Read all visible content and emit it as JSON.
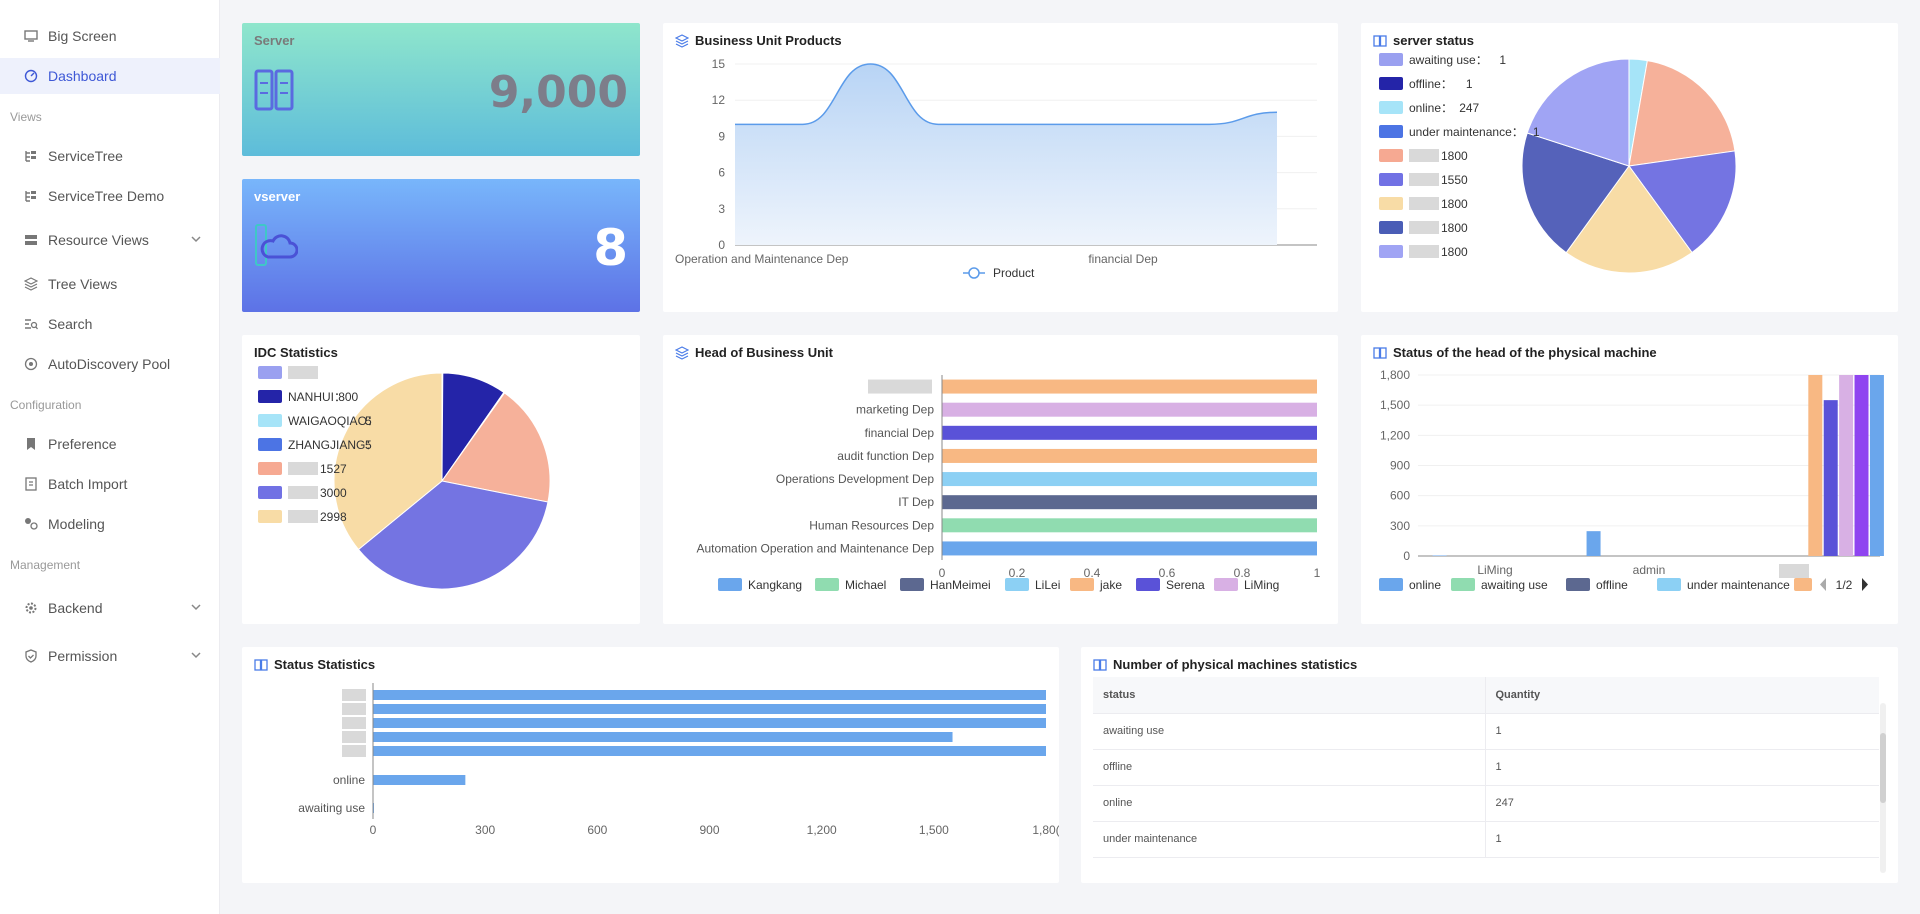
{
  "sidebar": {
    "items": [
      {
        "label": "Big Screen"
      },
      {
        "label": "Dashboard"
      },
      {
        "label": "ServiceTree"
      },
      {
        "label": "ServiceTree Demo"
      },
      {
        "label": "Resource Views"
      },
      {
        "label": "Tree Views"
      },
      {
        "label": "Search"
      },
      {
        "label": "AutoDiscovery Pool"
      },
      {
        "label": "Preference"
      },
      {
        "label": "Batch Import"
      },
      {
        "label": "Modeling"
      },
      {
        "label": "Backend"
      },
      {
        "label": "Permission"
      }
    ],
    "sections": [
      "Views",
      "Configuration",
      "Management"
    ]
  },
  "cards": {
    "server": {
      "label": "Server",
      "value": "9,000"
    },
    "vserver": {
      "label": "vserver",
      "value": "8"
    },
    "business_unit_products": {
      "title": "Business Unit Products"
    },
    "server_status": {
      "title": "server status"
    },
    "idc_statistics": {
      "title": "IDC Statistics"
    },
    "head_of_business_unit": {
      "title": "Head of Business Unit"
    },
    "physical_head_status": {
      "title": "Status of the head of the physical machine"
    },
    "status_statistics": {
      "title": "Status Statistics"
    },
    "physical_machines": {
      "title": "Number of physical machines statistics",
      "columns": [
        "status",
        "Quantity"
      ],
      "rows": [
        [
          "awaiting use",
          "1"
        ],
        [
          "offline",
          "1"
        ],
        [
          "online",
          "247"
        ],
        [
          "under maintenance",
          "1"
        ]
      ]
    }
  },
  "chart_data": [
    {
      "type": "area",
      "title": "Business Unit Products",
      "x": [
        "Operation and Maintenance Dep",
        "",
        "",
        "",
        "",
        "",
        "financial Dep",
        "",
        ""
      ],
      "xlabels_shown": [
        "Operation and Maintenance Dep",
        "financial Dep"
      ],
      "series": [
        {
          "name": "Product",
          "values": [
            10,
            10,
            15,
            10,
            10,
            10,
            10,
            10,
            11
          ]
        }
      ],
      "ylim": [
        0,
        15
      ],
      "yticks": [
        "0",
        "3",
        "6",
        "9",
        "12",
        "15"
      ],
      "color": "#5b9bea"
    },
    {
      "type": "pie",
      "title": "server status",
      "legend": [
        {
          "name": "awaiting use",
          "value": "1",
          "color": "#9aa0f0"
        },
        {
          "name": "offline",
          "value": "1",
          "color": "#2424a8"
        },
        {
          "name": "online",
          "value": "247",
          "color": "#a6e4f8"
        },
        {
          "name": "under maintenance",
          "value": "1",
          "color": "#4c74e4"
        },
        {
          "name": "",
          "value": "1800",
          "color": "#f6a992"
        },
        {
          "name": "",
          "value": "1550",
          "color": "#7171e4"
        },
        {
          "name": "",
          "value": "1800",
          "color": "#f8dca6"
        },
        {
          "name": "",
          "value": "1800",
          "color": "#4a5db6"
        },
        {
          "name": "",
          "value": "1800",
          "color": "#a0a4f4"
        }
      ],
      "slices": [
        {
          "value": 247,
          "color": "#a6e4f8"
        },
        {
          "value": 1800,
          "color": "#f6b19a"
        },
        {
          "value": 1550,
          "color": "#7474e2"
        },
        {
          "value": 1800,
          "color": "#f8dca6"
        },
        {
          "value": 1800,
          "color": "#5562ba"
        },
        {
          "value": 1800,
          "color": "#a0a4f4"
        }
      ]
    },
    {
      "type": "pie",
      "title": "IDC Statistics",
      "legend": [
        {
          "name": "",
          "value": "",
          "color": "#9aa0f0"
        },
        {
          "name": "NANHUI",
          "value": "800",
          "color": "#2424a8"
        },
        {
          "name": "WAIGAOQIAO",
          "value": "5",
          "color": "#a6e4f8"
        },
        {
          "name": "ZHANGJIANG",
          "value": "5",
          "color": "#4c74e4"
        },
        {
          "name": "",
          "value": "1527",
          "color": "#f6a992"
        },
        {
          "name": "",
          "value": "3000",
          "color": "#7171e4"
        },
        {
          "name": "",
          "value": "2998",
          "color": "#f8dca6"
        }
      ],
      "slices": [
        {
          "value": 10,
          "color": "#9aa0f0"
        },
        {
          "value": 800,
          "color": "#2424a8"
        },
        {
          "value": 5,
          "color": "#a6e4f8"
        },
        {
          "value": 5,
          "color": "#4c74e4"
        },
        {
          "value": 1527,
          "color": "#f6b19a"
        },
        {
          "value": 3000,
          "color": "#7474e2"
        },
        {
          "value": 2998,
          "color": "#f8dca6"
        }
      ]
    },
    {
      "type": "bar",
      "orientation": "horizontal",
      "title": "Head of Business Unit",
      "categories": [
        "",
        "marketing Dep",
        "financial Dep",
        "audit function Dep",
        "Operations Development Dep",
        "IT Dep",
        "Human Resources Dep",
        "Automation Operation and Maintenance Dep"
      ],
      "values": [
        1,
        1,
        1,
        1,
        1,
        1,
        1,
        1
      ],
      "bar_colors": [
        "#f8b883",
        "#d8b0e4",
        "#5a52d8",
        "#f8b883",
        "#8cd0f4",
        "#5c6890",
        "#90dcb0",
        "#6aa6ec"
      ],
      "xlim": [
        0,
        1
      ],
      "xticks": [
        "0",
        "0.2",
        "0.4",
        "0.6",
        "0.8",
        "1"
      ],
      "legend": [
        {
          "name": "Kangkang",
          "color": "#6aa6ec"
        },
        {
          "name": "Michael",
          "color": "#90dcb0"
        },
        {
          "name": "HanMeimei",
          "color": "#5c6890"
        },
        {
          "name": "LiLei",
          "color": "#8cd0f4"
        },
        {
          "name": "jake",
          "color": "#f8b883"
        },
        {
          "name": "Serena",
          "color": "#5a52d8"
        },
        {
          "name": "LiMing",
          "color": "#d8b0e4"
        }
      ]
    },
    {
      "type": "bar",
      "title": "Status of the head of the physical machine",
      "categories": [
        "LiMing",
        "admin",
        ""
      ],
      "ylim": [
        0,
        1800
      ],
      "yticks": [
        "0",
        "300",
        "600",
        "900",
        "1,200",
        "1,500",
        "1,800"
      ],
      "bars": [
        {
          "cat": 0,
          "offset": -0.36,
          "value": 5,
          "color": "#6aa6ec"
        },
        {
          "cat": 1,
          "offset": -0.36,
          "value": 247,
          "color": "#6aa6ec"
        },
        {
          "cat": 2,
          "offset": 0.08,
          "value": 1800,
          "color": "#f8b883"
        },
        {
          "cat": 2,
          "offset": 0.18,
          "value": 1550,
          "color": "#5a52d8"
        },
        {
          "cat": 2,
          "offset": 0.28,
          "value": 1800,
          "color": "#d8b0e4"
        },
        {
          "cat": 2,
          "offset": 0.38,
          "value": 1800,
          "color": "#8f44f0"
        },
        {
          "cat": 2,
          "offset": 0.48,
          "value": 1800,
          "color": "#6aa6ec"
        }
      ],
      "legend": [
        {
          "name": "online",
          "color": "#6aa6ec"
        },
        {
          "name": "awaiting use",
          "color": "#90dcb0"
        },
        {
          "name": "offline",
          "color": "#5c6890"
        },
        {
          "name": "under maintenance",
          "color": "#8cd0f4"
        },
        {
          "name": "",
          "color": "#f8b883"
        }
      ],
      "pager": "1/2"
    },
    {
      "type": "bar",
      "orientation": "horizontal",
      "title": "Status Statistics",
      "categories": [
        "",
        "",
        "",
        "",
        "",
        "online",
        "awaiting use"
      ],
      "values": [
        1800,
        1800,
        1800,
        1550,
        1800,
        247,
        1
      ],
      "xlim": [
        0,
        1800
      ],
      "xticks": [
        "0",
        "300",
        "600",
        "900",
        "1,200",
        "1,500",
        "1,80("
      ],
      "color": "#6aa6ec"
    }
  ]
}
